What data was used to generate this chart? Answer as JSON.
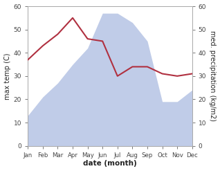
{
  "months": [
    "Jan",
    "Feb",
    "Mar",
    "Apr",
    "May",
    "Jun",
    "Jul",
    "Aug",
    "Sep",
    "Oct",
    "Nov",
    "Dec"
  ],
  "x": [
    1,
    2,
    3,
    4,
    5,
    6,
    7,
    8,
    9,
    10,
    11,
    12
  ],
  "temperature": [
    37,
    43,
    48,
    55,
    46,
    45,
    30,
    34,
    34,
    31,
    30,
    31
  ],
  "precipitation": [
    13,
    21,
    27,
    35,
    42,
    57,
    57,
    53,
    45,
    19,
    19,
    24
  ],
  "temp_color": "#b03040",
  "precip_color": "#c0cce8",
  "ylim_left": [
    0,
    60
  ],
  "ylim_right": [
    0,
    60
  ],
  "xlabel": "date (month)",
  "ylabel_left": "max temp (C)",
  "ylabel_right": "med. precipitation (kg/m2)",
  "bg_color": "#ffffff",
  "spine_color": "#aaaaaa",
  "tick_color": "#444444",
  "label_color": "#222222",
  "yticks": [
    0,
    10,
    20,
    30,
    40,
    50,
    60
  ]
}
